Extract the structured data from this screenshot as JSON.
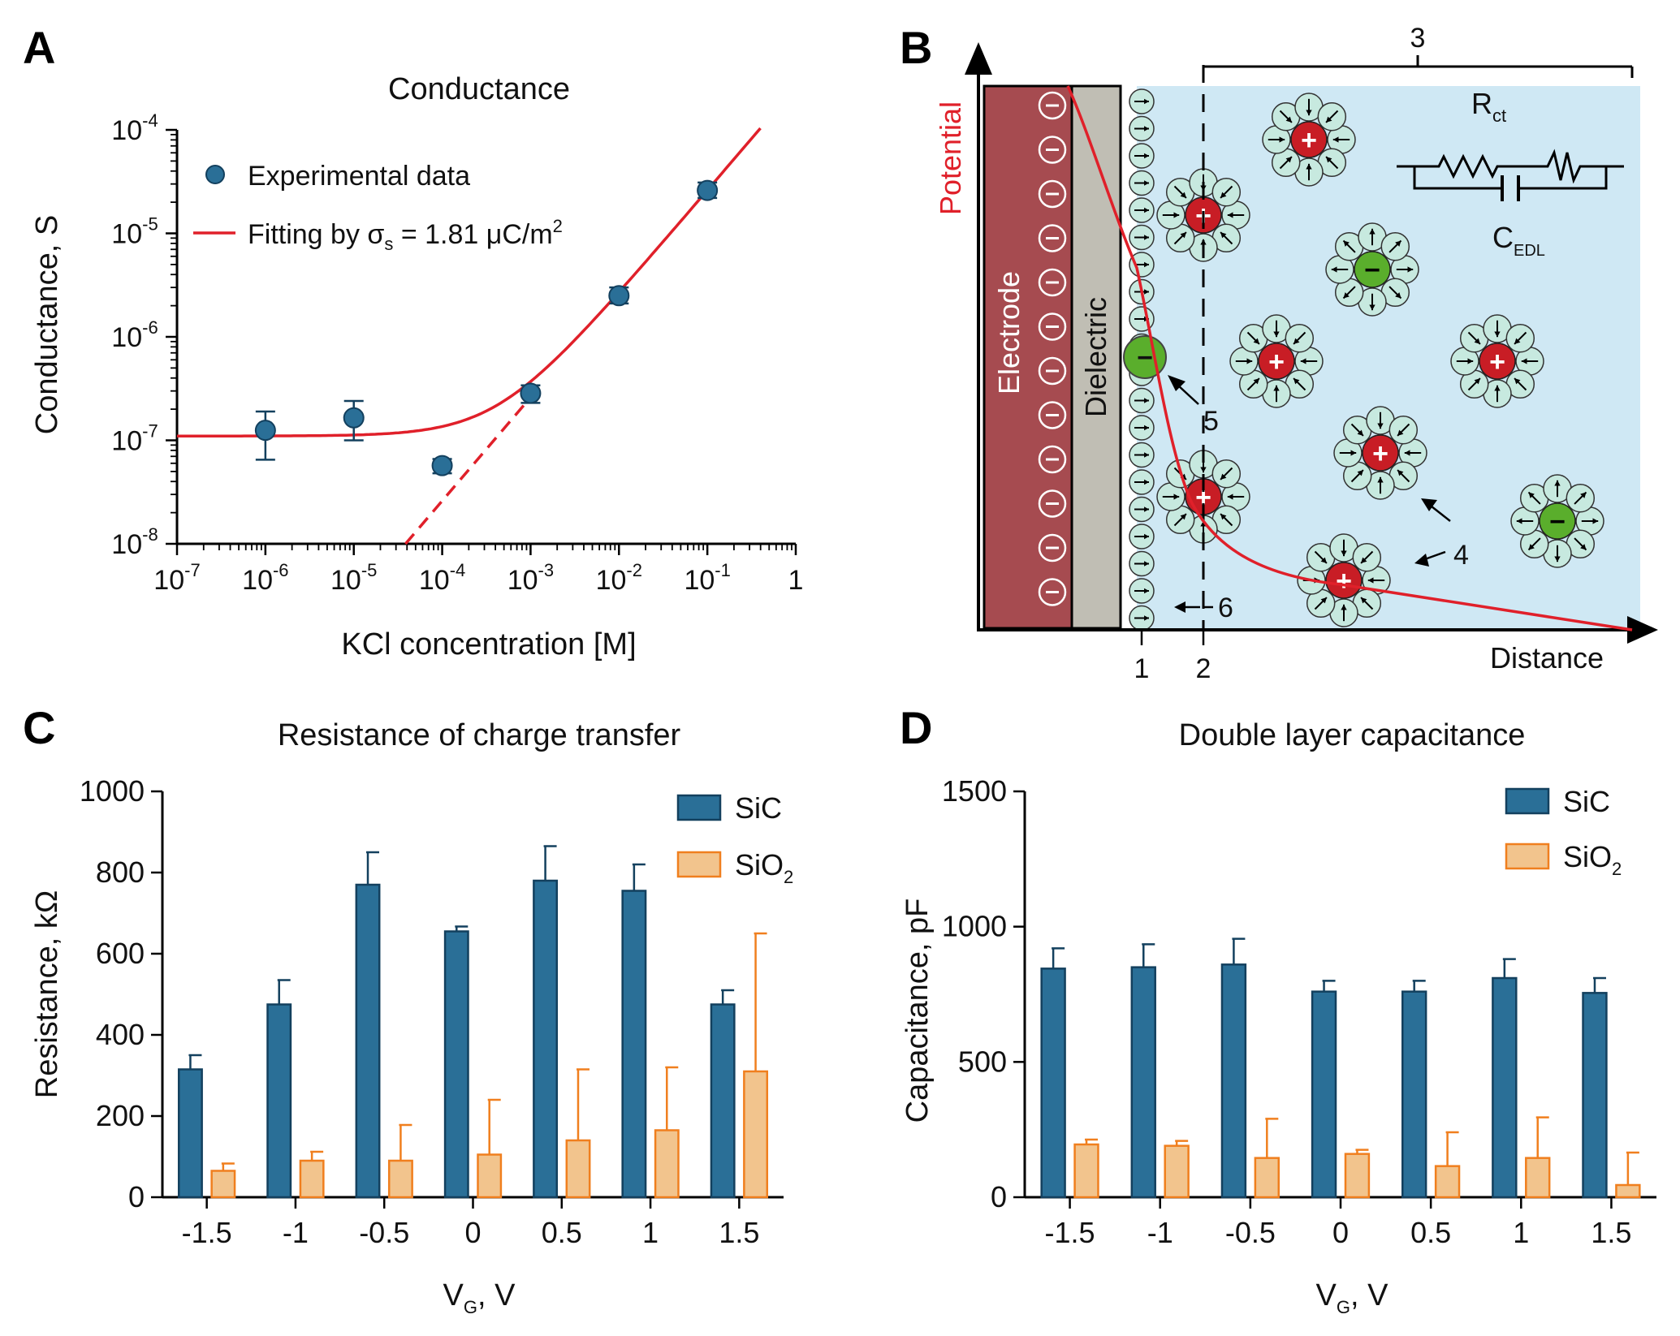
{
  "colors": {
    "sic": "#2a6f97",
    "sic_edge": "#13405e",
    "sio2": "#f2c48d",
    "sio2_edge": "#f07f1e",
    "fit": "#e0202a",
    "point": "#2a6f97",
    "electrode": "#a64b50",
    "dielectric": "#c0beb4",
    "solution": "#cfe8f4",
    "water": "#c7e9df",
    "cation": "#c81d25",
    "anion": "#5aae2c"
  },
  "chart_data": [
    {
      "panel": "A",
      "type": "scatter",
      "title": "Conductance",
      "xlabel": "KCl concentration [M]",
      "ylabel": "Conductance, S",
      "xscale": "log",
      "yscale": "log",
      "xlim": [
        1e-07,
        1
      ],
      "ylim": [
        1e-08,
        0.0001
      ],
      "xtick_base": [
        "10",
        "10",
        "10",
        "10",
        "10",
        "10",
        "10",
        "1"
      ],
      "xtick_exp": [
        "-7",
        "-6",
        "-5",
        "-4",
        "-3",
        "-2",
        "-1",
        ""
      ],
      "ytick_base": [
        "10",
        "10",
        "10",
        "10",
        "10"
      ],
      "ytick_exp": [
        "-8",
        "-7",
        "-6",
        "-5",
        "-4"
      ],
      "series": [
        {
          "name": "Experimental data",
          "x": [
            1e-06,
            1e-05,
            0.0001,
            0.001,
            0.01,
            0.1
          ],
          "y": [
            1.25e-07,
            1.65e-07,
            5.7e-08,
            2.85e-07,
            2.5e-06,
            2.6e-05
          ],
          "err_low": [
            6.5e-08,
            1e-07,
            4.8e-08,
            2.3e-07,
            2.1e-06,
            2.2e-05
          ],
          "err_high": [
            1.9e-07,
            2.4e-07,
            6.6e-08,
            3.4e-07,
            3e-06,
            3.1e-05
          ]
        },
        {
          "name": "Fitting by",
          "sigma_symbol": "σ",
          "sigma_sub": "s",
          "equation_value": " = 1.81 μC/m",
          "equation_sup": "2",
          "model": "G = 1.1e-7 + 2.6e-4 * c (dashed bulk asymptote)",
          "baseline": 1.1e-07,
          "slope": 0.00026
        }
      ]
    },
    {
      "panel": "C",
      "type": "bar",
      "title": "Resistance of charge transfer",
      "xlabel_main": "V",
      "xlabel_sub": "G",
      "xlabel_tail": ", V",
      "ylabel": "Resistance, kΩ",
      "ylim": [
        0,
        1000
      ],
      "yticks": [
        "0",
        "200",
        "400",
        "600",
        "800",
        "1000"
      ],
      "categories": [
        "-1.5",
        "-1",
        "-0.5",
        "0",
        "0.5",
        "1",
        "1.5"
      ],
      "series": [
        {
          "name": "SiC",
          "values": [
            315,
            475,
            770,
            655,
            780,
            755,
            475
          ],
          "errors": [
            35,
            60,
            80,
            12,
            85,
            65,
            35
          ]
        },
        {
          "name": "SiO",
          "name_sub": "2",
          "values": [
            65,
            90,
            90,
            105,
            140,
            165,
            310
          ],
          "errors": [
            18,
            22,
            88,
            135,
            175,
            155,
            340
          ]
        }
      ]
    },
    {
      "panel": "D",
      "type": "bar",
      "title": "Double layer capacitance",
      "xlabel_main": "V",
      "xlabel_sub": "G",
      "xlabel_tail": ", V",
      "ylabel": "Capacitance, pF",
      "ylim": [
        0,
        1500
      ],
      "yticks": [
        "0",
        "500",
        "1000",
        "1500"
      ],
      "categories": [
        "-1.5",
        "-1",
        "-0.5",
        "0",
        "0.5",
        "1",
        "1.5"
      ],
      "series": [
        {
          "name": "SiC",
          "values": [
            845,
            850,
            860,
            760,
            760,
            810,
            755
          ],
          "errors": [
            75,
            85,
            95,
            40,
            40,
            70,
            55
          ]
        },
        {
          "name": "SiO",
          "name_sub": "2",
          "values": [
            195,
            190,
            145,
            160,
            115,
            145,
            45
          ],
          "errors": [
            18,
            18,
            145,
            15,
            125,
            150,
            120
          ]
        }
      ]
    }
  ],
  "panels": {
    "A": {
      "letter": "A",
      "legend_data": "Experimental data"
    },
    "B": {
      "letter": "B",
      "potential_label": "Potential",
      "distance_label": "Distance",
      "electrode_label": "Electrode",
      "dielectric_label": "Dielectric",
      "num_1": "1",
      "num_2": "2",
      "num_3": "3",
      "num_4": "4",
      "num_5": "5",
      "num_6": "6",
      "rct_main": "R",
      "rct_sub": "ct",
      "cedl_main": "C",
      "cedl_sub": "EDL",
      "electrode_charge_count": 12,
      "plus_sign": "+",
      "minus_sign": "−"
    },
    "C": {
      "letter": "C"
    },
    "D": {
      "letter": "D"
    }
  }
}
